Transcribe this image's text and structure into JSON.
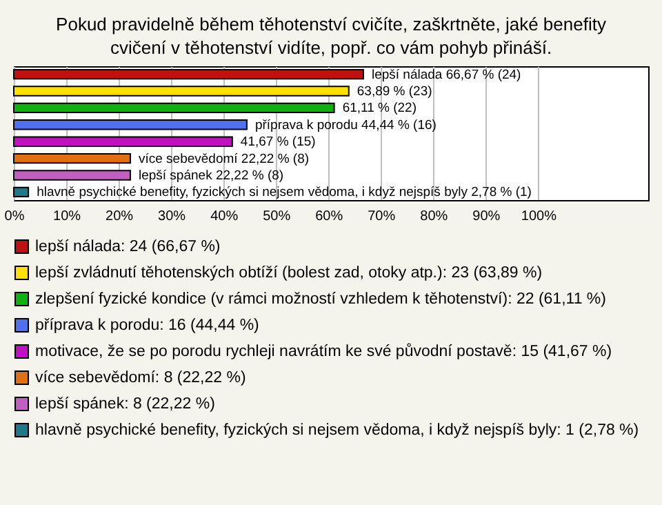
{
  "chart_data": {
    "type": "bar",
    "orientation": "horizontal",
    "title": "Pokud pravidelně během těhotenství cvičíte, zaškrtněte, jaké benefity cvičení v těhotenství vidíte, popř. co vám pohyb přináší.",
    "categories": [
      null,
      null,
      null,
      null,
      null,
      null,
      null,
      null
    ],
    "series": [
      {
        "name": "lepší nálada: 24 (66,67 %)",
        "color": "#c01010",
        "values": [
          66.67,
          null,
          null,
          null,
          null,
          null,
          null,
          null
        ],
        "value_labels": [
          "lepší nálada 66,67 % (24)",
          null,
          null,
          null,
          null,
          null,
          null,
          null
        ]
      },
      {
        "name": "lepší zvládnutí těhotenských obtíží (bolest zad, otoky atp.): 23 (63,89 %)",
        "color": "#ffe000",
        "values": [
          null,
          63.89,
          null,
          null,
          null,
          null,
          null,
          null
        ],
        "value_labels": [
          null,
          "63,89 % (23)",
          null,
          null,
          null,
          null,
          null,
          null
        ]
      },
      {
        "name": "zlepšení fyzické kondice (v rámci možností vzhledem k těhotenství): 22 (61,11 %)",
        "color": "#10b010",
        "values": [
          null,
          null,
          61.11,
          null,
          null,
          null,
          null,
          null
        ],
        "value_labels": [
          null,
          null,
          "61,11 % (22)",
          null,
          null,
          null,
          null,
          null
        ]
      },
      {
        "name": "příprava k porodu: 16 (44,44 %)",
        "color": "#5070f0",
        "values": [
          null,
          null,
          null,
          44.44,
          null,
          null,
          null,
          null
        ],
        "value_labels": [
          null,
          null,
          null,
          "příprava k porodu 44,44 % (16)",
          null,
          null,
          null,
          null
        ]
      },
      {
        "name": "motivace, že se po porodu rychleji navrátím ke své původní postavě: 15 (41,67 %)",
        "color": "#c010c0",
        "values": [
          null,
          null,
          null,
          null,
          41.67,
          null,
          null,
          null
        ],
        "value_labels": [
          null,
          null,
          null,
          null,
          "41,67 % (15)",
          null,
          null,
          null
        ]
      },
      {
        "name": "více sebevědomí: 8 (22,22 %)",
        "color": "#e07010",
        "values": [
          null,
          null,
          null,
          null,
          null,
          22.22,
          null,
          null
        ],
        "value_labels": [
          null,
          null,
          null,
          null,
          null,
          "více sebevědomí 22,22 % (8)",
          null,
          null
        ]
      },
      {
        "name": "lepší spánek: 8 (22,22 %)",
        "color": "#c060c0",
        "values": [
          null,
          null,
          null,
          null,
          null,
          null,
          22.22,
          null
        ],
        "value_labels": [
          null,
          null,
          null,
          null,
          null,
          null,
          "lepší spánek 22,22 % (8)",
          null
        ]
      },
      {
        "name": "hlavně psychické benefity, fyzických si nejsem vědoma, i když nejspíš byly: 1 (2,78 %)",
        "color": "#207888",
        "values": [
          null,
          null,
          null,
          null,
          null,
          null,
          null,
          2.78
        ],
        "value_labels": [
          null,
          null,
          null,
          null,
          null,
          null,
          null,
          "hlavně psychické benefity, fyzických si nejsem vědoma, i když nejspíš byly 2,78 % (1)"
        ]
      }
    ],
    "xlim": [
      0,
      121
    ],
    "xticks": [
      {
        "value": 0,
        "label": "0%"
      },
      {
        "value": 10,
        "label": "10%"
      },
      {
        "value": 20,
        "label": "20%"
      },
      {
        "value": 30,
        "label": "30%"
      },
      {
        "value": 40,
        "label": "40%"
      },
      {
        "value": 50,
        "label": "50%"
      },
      {
        "value": 60,
        "label": "60%"
      },
      {
        "value": 70,
        "label": "70%"
      },
      {
        "value": 80,
        "label": "80%"
      },
      {
        "value": 90,
        "label": "90%"
      },
      {
        "value": 100,
        "label": "100%"
      }
    ],
    "grid": "x",
    "legend": "bottom"
  }
}
